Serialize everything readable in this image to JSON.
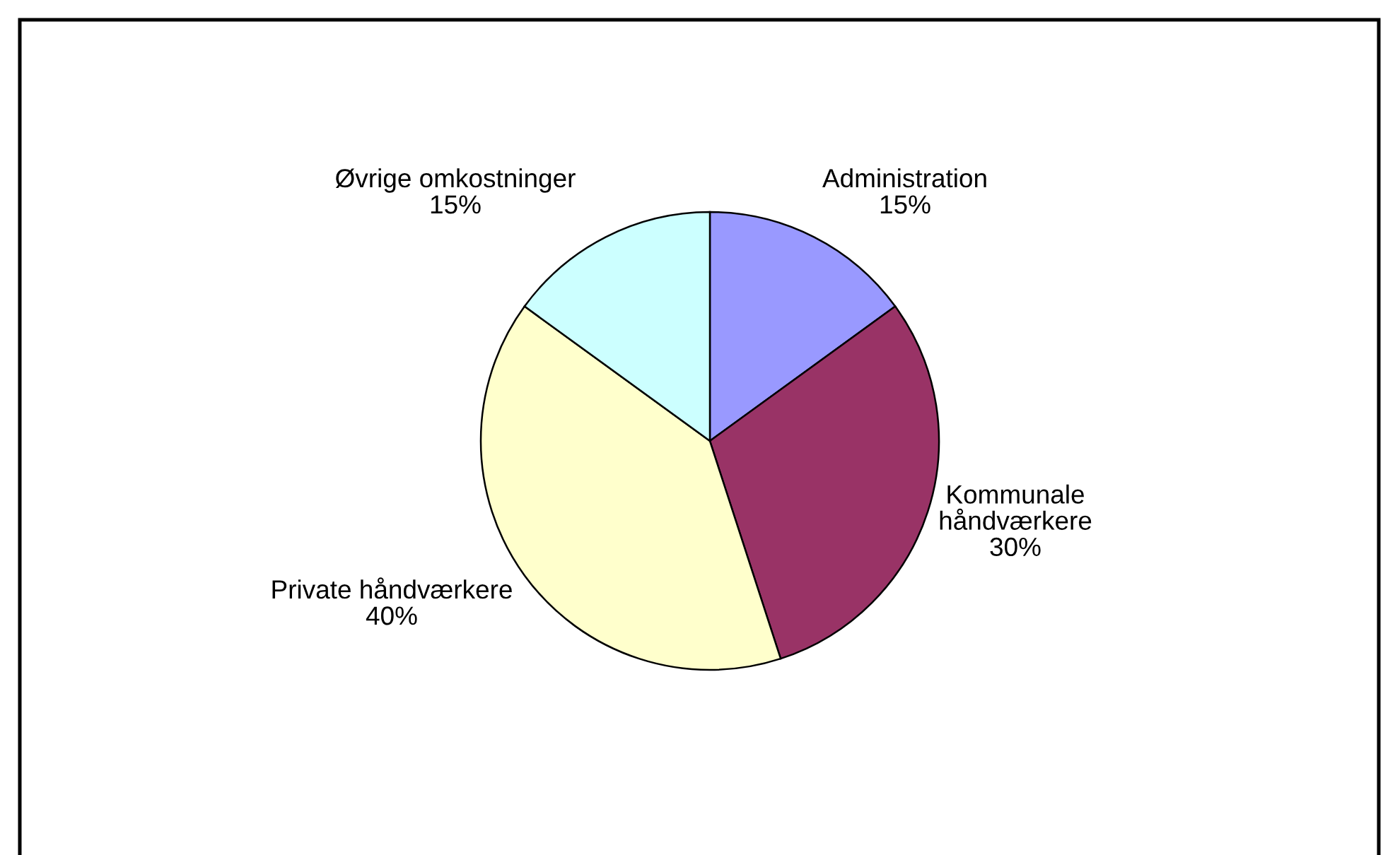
{
  "chart_data": {
    "type": "pie",
    "categories": [
      "Administration",
      "Kommunale\nhåndværkere",
      "Private håndværkere",
      "Øvrige omkostninger"
    ],
    "values": [
      15,
      30,
      40,
      15
    ],
    "colors": [
      "#9999ff",
      "#993366",
      "#ffffcc",
      "#ccffff"
    ],
    "value_labels": [
      "15%",
      "30%",
      "40%",
      "15%"
    ]
  }
}
